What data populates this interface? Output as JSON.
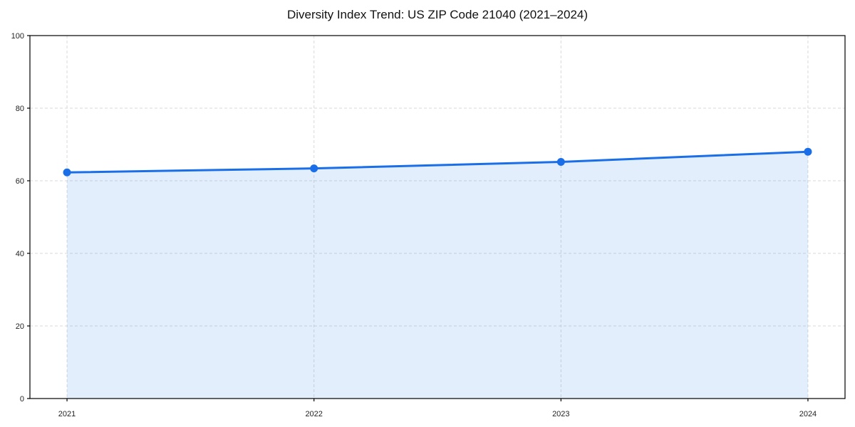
{
  "figure": {
    "background": "#ffffff"
  },
  "chart_data": {
    "type": "area",
    "title": "Diversity Index Trend: US ZIP Code 21040 (2021–2024)",
    "x": [
      2021,
      2022,
      2023,
      2024
    ],
    "x_tick_labels": [
      "2021",
      "2022",
      "2023",
      "2024"
    ],
    "series": [
      {
        "name": "Diversity Index",
        "values": [
          62.3,
          63.4,
          65.2,
          68.0
        ]
      }
    ],
    "xlabel": "",
    "ylabel": "",
    "ylim": [
      0,
      100
    ],
    "y_ticks": [
      0,
      20,
      40,
      60,
      80,
      100
    ],
    "x_margin_frac": 0.0455,
    "grid": true,
    "grid_style": "dashed",
    "legend": "none",
    "colors": {
      "line": "#1a6fe8",
      "marker": "#1a6fe8",
      "fill": "rgba(26,115,232,0.12)",
      "grid": "#dadada",
      "spine": "#000000",
      "tick": "#000000",
      "tick_label": "#222222",
      "title": "#111111",
      "background": "#ffffff"
    }
  }
}
